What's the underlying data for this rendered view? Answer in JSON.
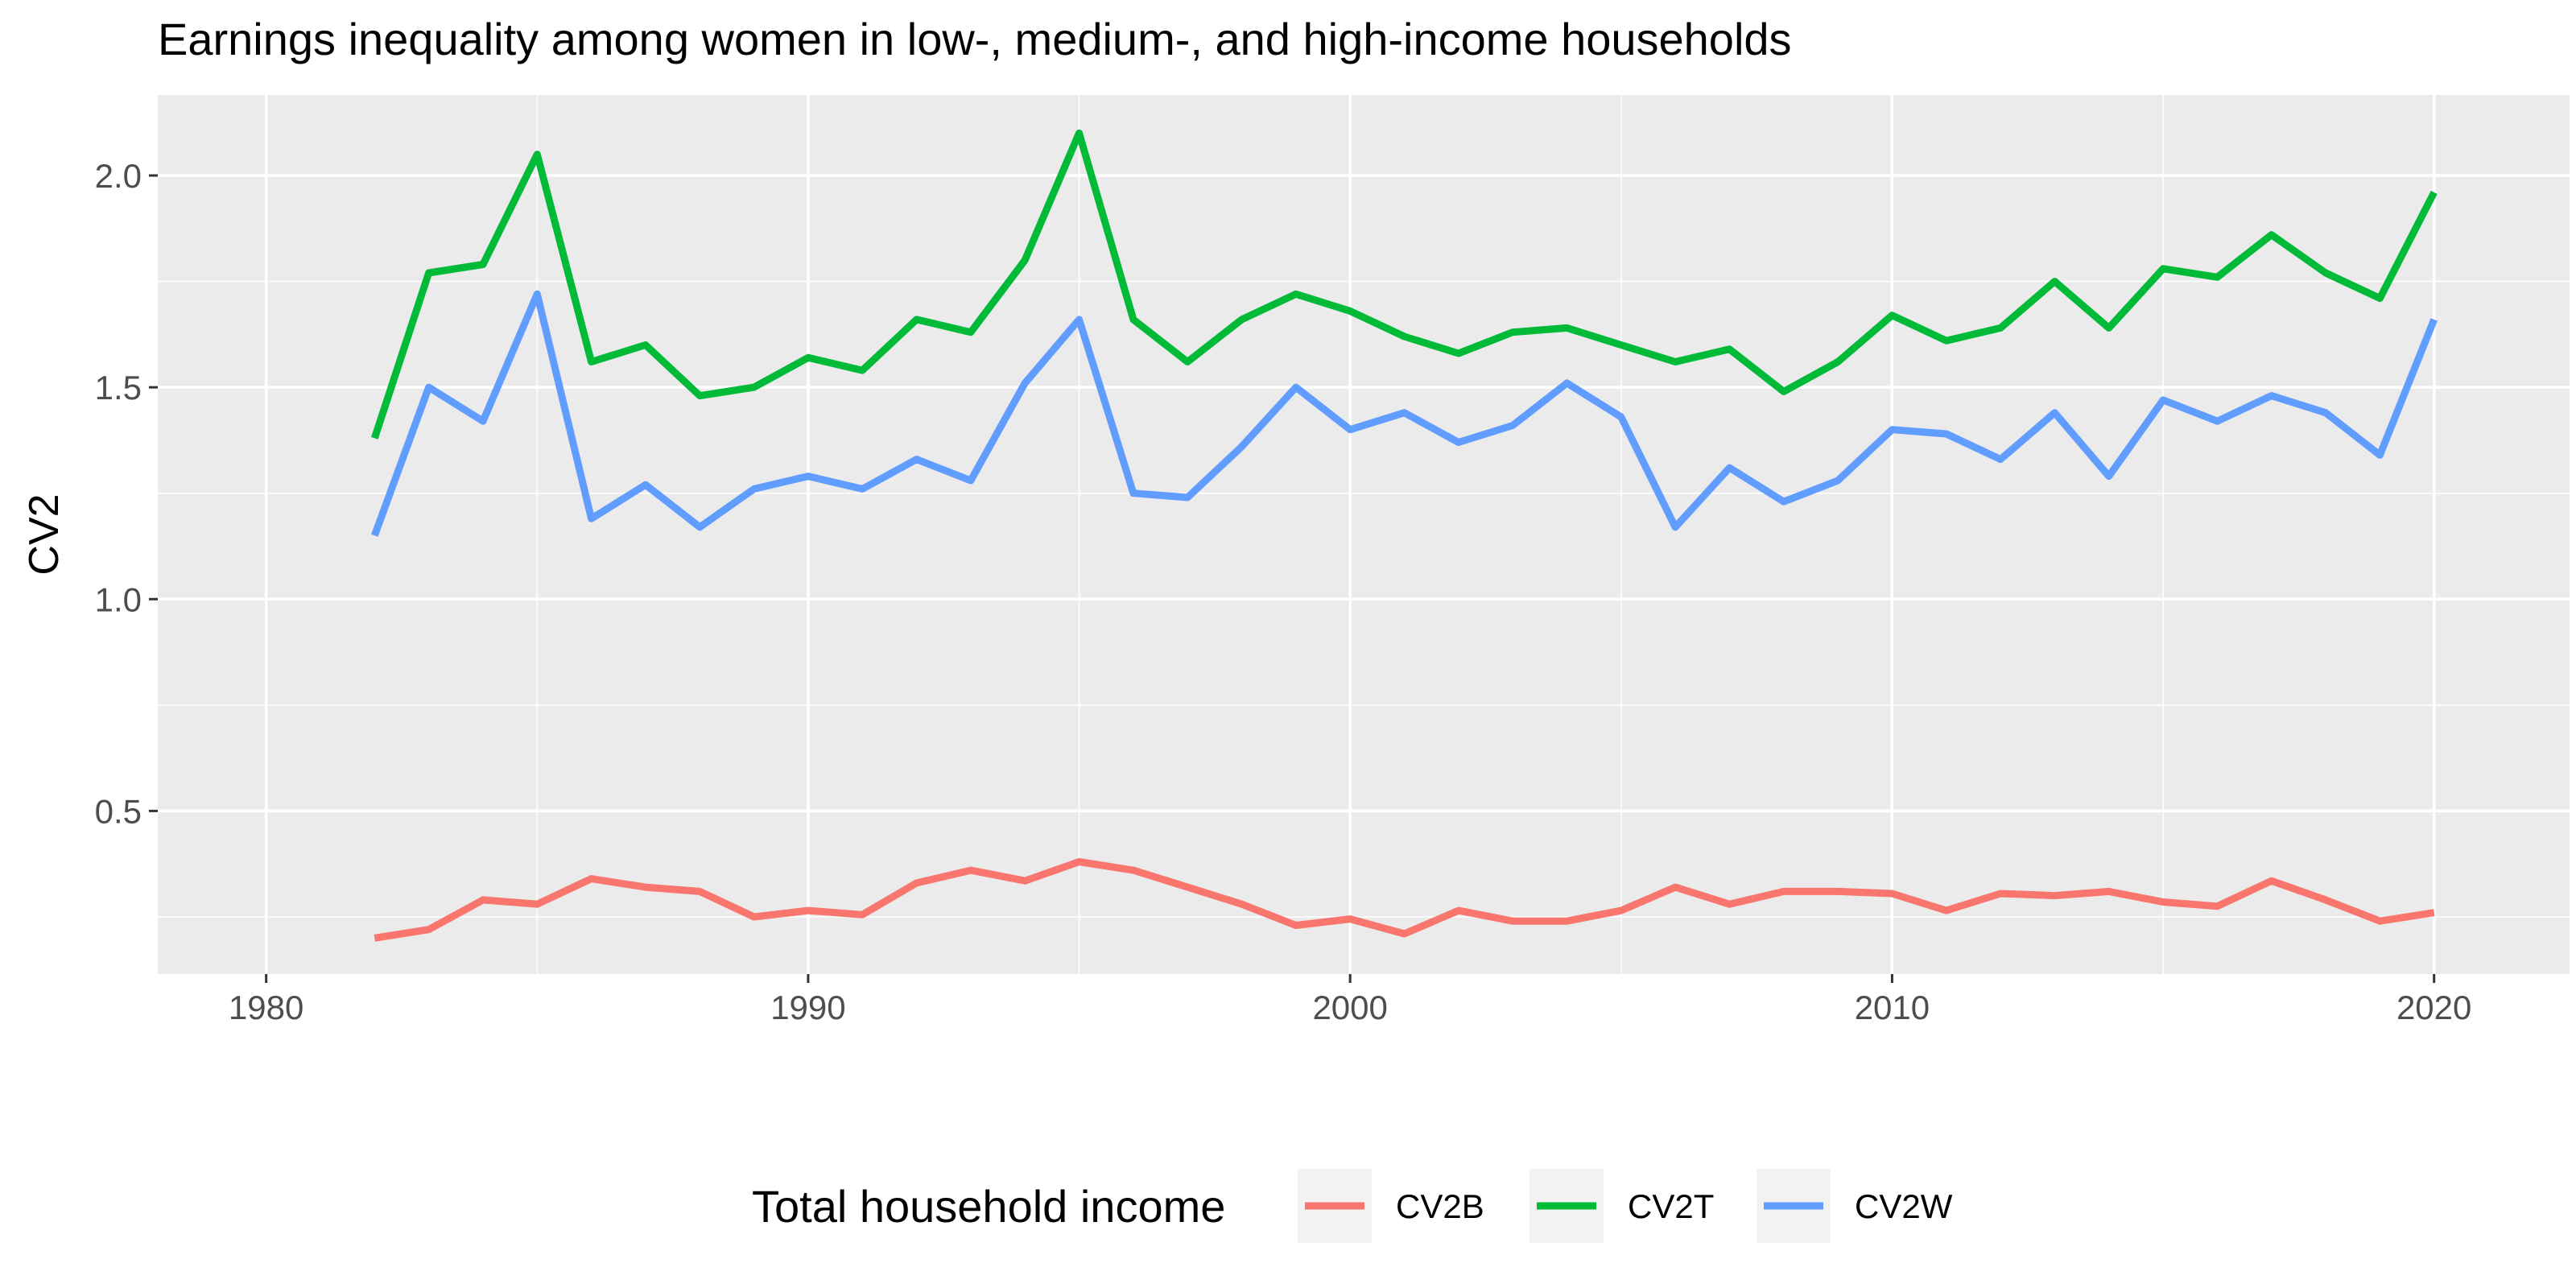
{
  "chart_data": {
    "type": "line",
    "title": "Earnings inequality among women in low-, medium-, and high-income households",
    "xlabel": "",
    "ylabel": "CV2",
    "xlim": [
      1978,
      2022.5
    ],
    "ylim": [
      0.115,
      2.19
    ],
    "x_ticks": [
      1980,
      1990,
      2000,
      2010,
      2020
    ],
    "y_ticks": [
      0.5,
      1.0,
      1.5,
      2.0
    ],
    "x_tick_labels": [
      "1980",
      "1990",
      "2000",
      "2010",
      "2020"
    ],
    "y_tick_labels": [
      "0.5",
      "1.0",
      "1.5",
      "2.0"
    ],
    "grid": true,
    "legend_position": "bottom",
    "legend_title": "Total household income",
    "x": [
      1982,
      1983,
      1984,
      1985,
      1986,
      1987,
      1988,
      1989,
      1990,
      1991,
      1992,
      1993,
      1994,
      1995,
      1996,
      1997,
      1998,
      1999,
      2000,
      2001,
      2002,
      2003,
      2004,
      2005,
      2006,
      2007,
      2008,
      2009,
      2010,
      2011,
      2012,
      2013,
      2014,
      2015,
      2016,
      2017,
      2018,
      2019,
      2020
    ],
    "series": [
      {
        "name": "CV2B",
        "color": "#F8766D",
        "values": [
          0.2,
          0.22,
          0.29,
          0.28,
          0.34,
          0.32,
          0.31,
          0.25,
          0.265,
          0.255,
          0.33,
          0.36,
          0.335,
          0.38,
          0.36,
          0.32,
          0.28,
          0.23,
          0.245,
          0.21,
          0.265,
          0.24,
          0.24,
          0.265,
          0.32,
          0.28,
          0.31,
          0.31,
          0.305,
          0.265,
          0.305,
          0.3,
          0.31,
          0.285,
          0.275,
          0.335,
          0.29,
          0.24,
          0.26
        ]
      },
      {
        "name": "CV2T",
        "color": "#00BA38",
        "values": [
          1.38,
          1.77,
          1.79,
          2.05,
          1.56,
          1.6,
          1.48,
          1.5,
          1.57,
          1.54,
          1.66,
          1.63,
          1.8,
          2.1,
          1.66,
          1.56,
          1.66,
          1.72,
          1.68,
          1.62,
          1.58,
          1.63,
          1.64,
          1.6,
          1.56,
          1.59,
          1.49,
          1.56,
          1.67,
          1.61,
          1.64,
          1.75,
          1.64,
          1.78,
          1.76,
          1.86,
          1.77,
          1.71,
          1.96
        ]
      },
      {
        "name": "CV2W",
        "color": "#619CFF",
        "values": [
          1.15,
          1.5,
          1.42,
          1.72,
          1.19,
          1.27,
          1.17,
          1.26,
          1.29,
          1.26,
          1.33,
          1.28,
          1.51,
          1.66,
          1.25,
          1.24,
          1.36,
          1.5,
          1.4,
          1.44,
          1.37,
          1.41,
          1.51,
          1.43,
          1.17,
          1.31,
          1.23,
          1.28,
          1.4,
          1.39,
          1.33,
          1.44,
          1.29,
          1.47,
          1.42,
          1.48,
          1.44,
          1.34,
          1.66
        ]
      }
    ]
  }
}
